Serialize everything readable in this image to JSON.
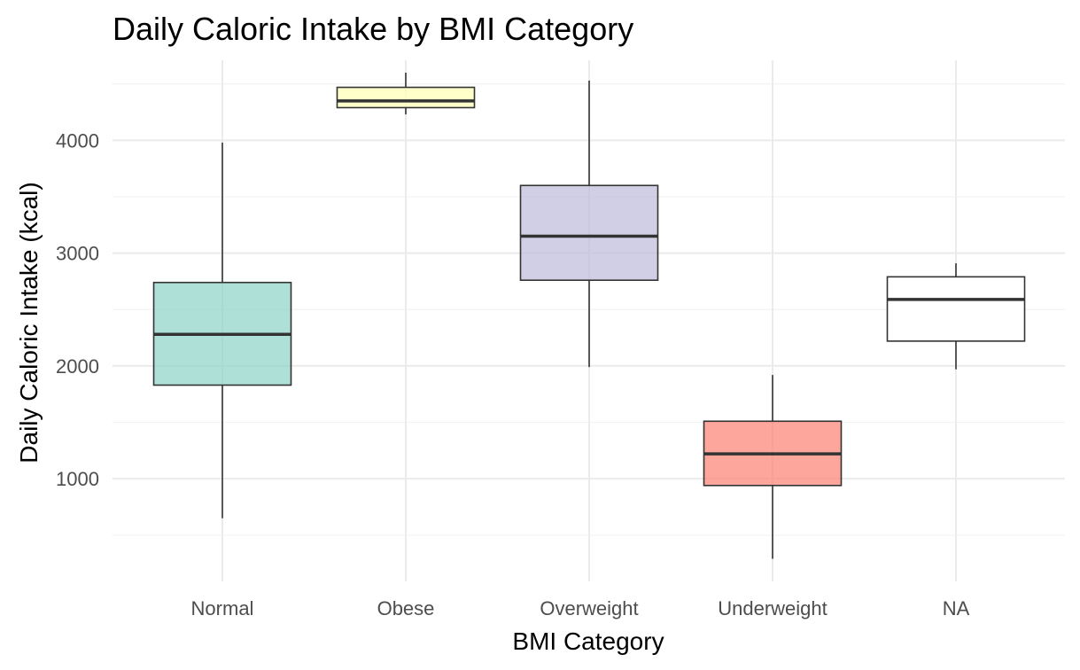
{
  "chart_data": {
    "type": "boxplot",
    "title": "Daily Caloric Intake by BMI Category",
    "xlabel": "BMI Category",
    "ylabel": "Daily Caloric Intake (kcal)",
    "ylim": [
      90,
      4710
    ],
    "yticks": [
      1000,
      2000,
      3000,
      4000
    ],
    "grid": true,
    "legend": "none",
    "categories": [
      "Normal",
      "Obese",
      "Overweight",
      "Underweight",
      "NA"
    ],
    "boxes": [
      {
        "category": "Normal",
        "min": 650,
        "q1": 1830,
        "median": 2280,
        "q3": 2740,
        "max": 3980,
        "color": "#8dd3c7"
      },
      {
        "category": "Obese",
        "min": 4230,
        "q1": 4290,
        "median": 4350,
        "q3": 4470,
        "max": 4600,
        "color": "#ffffb3"
      },
      {
        "category": "Overweight",
        "min": 1990,
        "q1": 2760,
        "median": 3150,
        "q3": 3600,
        "max": 4530,
        "color": "#bebada"
      },
      {
        "category": "Underweight",
        "min": 290,
        "q1": 940,
        "median": 1220,
        "q3": 1510,
        "max": 1920,
        "color": "#fb8072"
      },
      {
        "category": "NA",
        "min": 1970,
        "q1": 2220,
        "median": 2590,
        "q3": 2790,
        "max": 2910,
        "color": "#ffffff"
      }
    ]
  }
}
